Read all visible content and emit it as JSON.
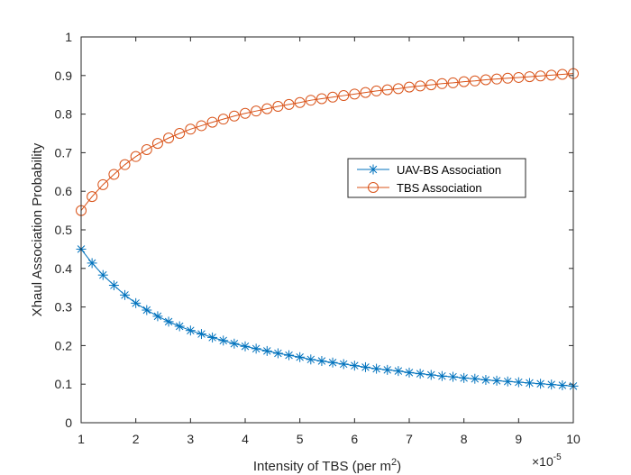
{
  "chart_data": {
    "type": "line",
    "title": "",
    "xlabel_prefix": "Intensity of TBS (per m",
    "xlabel_sup": "2",
    "xlabel_suffix": ")",
    "ylabel": "Xhaul Association Probability",
    "xlim": [
      1,
      10
    ],
    "ylim": [
      0,
      1
    ],
    "x_ticks": [
      "1",
      "2",
      "3",
      "4",
      "5",
      "6",
      "7",
      "8",
      "9",
      "10"
    ],
    "y_ticks": [
      "0",
      "0.1",
      "0.2",
      "0.3",
      "0.4",
      "0.5",
      "0.6",
      "0.7",
      "0.8",
      "0.9",
      "1"
    ],
    "x_multiplier_base": "×10",
    "x_multiplier_exp": "-5",
    "legend_position": "center-right",
    "x": [
      1,
      1.2,
      1.4,
      1.6,
      1.8,
      2,
      2.2,
      2.4,
      2.6,
      2.8,
      3,
      3.2,
      3.4,
      3.6,
      3.8,
      4,
      4.2,
      4.4,
      4.6,
      4.8,
      5,
      5.2,
      5.4,
      5.6,
      5.8,
      6,
      6.2,
      6.4,
      6.6,
      6.8,
      7,
      7.2,
      7.4,
      7.6,
      7.8,
      8,
      8.2,
      8.4,
      8.6,
      8.8,
      9,
      9.2,
      9.4,
      9.6,
      9.8,
      10
    ],
    "series": [
      {
        "name": "UAV-BS Association",
        "color": "#0072BD",
        "marker": "asterisk",
        "values": [
          0.45,
          0.4138,
          0.3828,
          0.3562,
          0.331,
          0.31,
          0.292,
          0.276,
          0.262,
          0.25,
          0.239,
          0.23,
          0.221,
          0.213,
          0.205,
          0.198,
          0.192,
          0.186,
          0.18,
          0.175,
          0.17,
          0.164,
          0.16,
          0.156,
          0.152,
          0.148,
          0.144,
          0.14,
          0.137,
          0.134,
          0.13,
          0.127,
          0.124,
          0.121,
          0.119,
          0.116,
          0.114,
          0.111,
          0.109,
          0.107,
          0.105,
          0.103,
          0.101,
          0.099,
          0.097,
          0.095
        ]
      },
      {
        "name": "TBS Association",
        "color": "#D95319",
        "marker": "circle",
        "values": [
          0.55,
          0.5862,
          0.6172,
          0.6438,
          0.669,
          0.69,
          0.708,
          0.724,
          0.738,
          0.75,
          0.761,
          0.77,
          0.779,
          0.787,
          0.795,
          0.802,
          0.808,
          0.814,
          0.82,
          0.825,
          0.83,
          0.836,
          0.84,
          0.844,
          0.848,
          0.852,
          0.856,
          0.86,
          0.863,
          0.866,
          0.87,
          0.873,
          0.876,
          0.879,
          0.881,
          0.884,
          0.886,
          0.889,
          0.891,
          0.893,
          0.895,
          0.897,
          0.899,
          0.901,
          0.903,
          0.905
        ]
      }
    ]
  }
}
